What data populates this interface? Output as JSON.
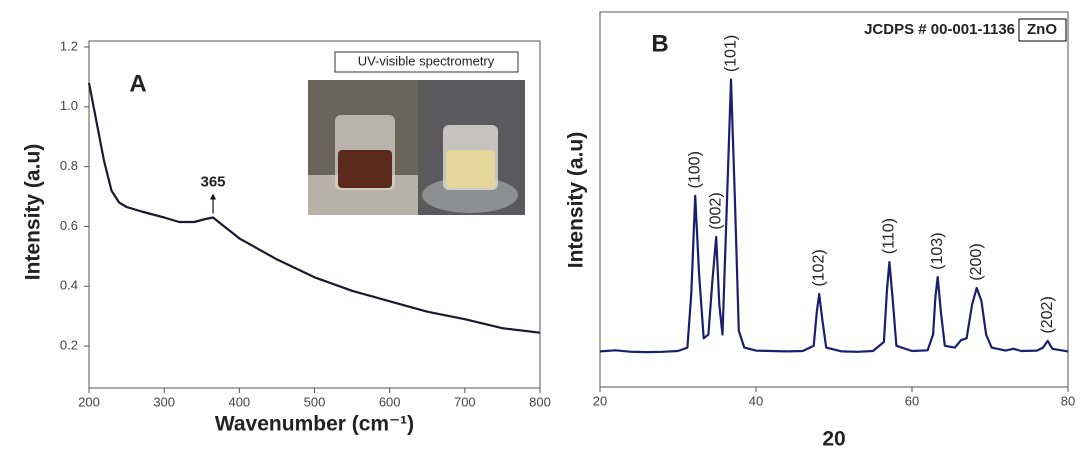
{
  "chart_data": [
    {
      "type": "line",
      "panel": "A",
      "x": [
        200,
        210,
        220,
        230,
        240,
        250,
        270,
        300,
        320,
        340,
        355,
        365,
        375,
        390,
        400,
        450,
        500,
        550,
        600,
        650,
        700,
        750,
        800
      ],
      "values": [
        1.08,
        0.95,
        0.82,
        0.72,
        0.68,
        0.665,
        0.65,
        0.63,
        0.615,
        0.615,
        0.625,
        0.63,
        0.61,
        0.58,
        0.56,
        0.49,
        0.43,
        0.385,
        0.35,
        0.315,
        0.29,
        0.26,
        0.245
      ],
      "color": "#1a1a2e",
      "xlim": [
        200,
        800
      ],
      "xticks": [
        200,
        300,
        400,
        500,
        600,
        700,
        800
      ],
      "ylim": [
        0.06,
        1.22
      ],
      "yticks": [
        0.2,
        0.4,
        0.6,
        0.8,
        {
          "value": 1,
          "label": "1.0"
        },
        1.2
      ],
      "xlabel": "Wavenumber (cm⁻¹)",
      "ylabel": "Intensity (a.u)",
      "annotations": [
        {
          "text": "365",
          "x": 365,
          "y": 0.63
        }
      ],
      "inset_caption": "UV-visible spectrometry"
    },
    {
      "type": "line",
      "panel": "B",
      "x": [
        20,
        22,
        24,
        26,
        28,
        30,
        31.2,
        31.7,
        32.2,
        32.7,
        33.3,
        33.9,
        34.4,
        34.9,
        35.3,
        35.7,
        36.2,
        36.8,
        37.3,
        37.8,
        38.5,
        40,
        42,
        44,
        46,
        47.4,
        47.8,
        48.1,
        48.5,
        49,
        51,
        53,
        55,
        56.4,
        56.8,
        57.1,
        57.5,
        58,
        60,
        62,
        62.7,
        63,
        63.3,
        63.7,
        64.2,
        65.5,
        66.3,
        67,
        67.7,
        68.3,
        68.9,
        69.5,
        70.2,
        72,
        73,
        74,
        76,
        76.8,
        77.4,
        78,
        80
      ],
      "values": [
        9.5,
        9.8,
        9.4,
        9.3,
        9.4,
        9.6,
        10.5,
        25,
        51,
        30,
        13,
        14,
        28,
        40,
        22,
        14,
        45,
        82,
        50,
        15,
        10.5,
        9.7,
        9.6,
        9.5,
        9.6,
        11,
        20,
        24.8,
        18,
        10.5,
        9.5,
        9.4,
        9.6,
        12,
        26,
        33.3,
        24,
        11,
        9.6,
        9.8,
        14,
        24,
        29.3,
        20,
        11,
        10.5,
        12.5,
        13,
        22,
        26.4,
        23,
        14,
        10.5,
        9.7,
        10.2,
        9.6,
        9.7,
        10.5,
        12.3,
        10.2,
        9.5
      ],
      "color": "#1c1f6e",
      "xlim": [
        20,
        80
      ],
      "xticks": [
        20,
        40,
        60,
        80
      ],
      "ylim": [
        0,
        100
      ],
      "xlabel": "20",
      "ylabel": "Intensity (a.u)",
      "annotations": [
        {
          "text": "(100)",
          "x": 32.2,
          "y": 51
        },
        {
          "text": "(002)",
          "x": 34.9,
          "y": 40
        },
        {
          "text": "(101)",
          "x": 36.8,
          "y": 82
        },
        {
          "text": "(102)",
          "x": 48.1,
          "y": 24.8
        },
        {
          "text": "(110)",
          "x": 57.1,
          "y": 33.3
        },
        {
          "text": "(103)",
          "x": 63.3,
          "y": 29.3
        },
        {
          "text": "(200)",
          "x": 68.3,
          "y": 26.4
        },
        {
          "text": "(202)",
          "x": 77.4,
          "y": 12.3
        }
      ],
      "reference": "JCDPS # 00-001-1136",
      "phase": "ZnO"
    }
  ]
}
